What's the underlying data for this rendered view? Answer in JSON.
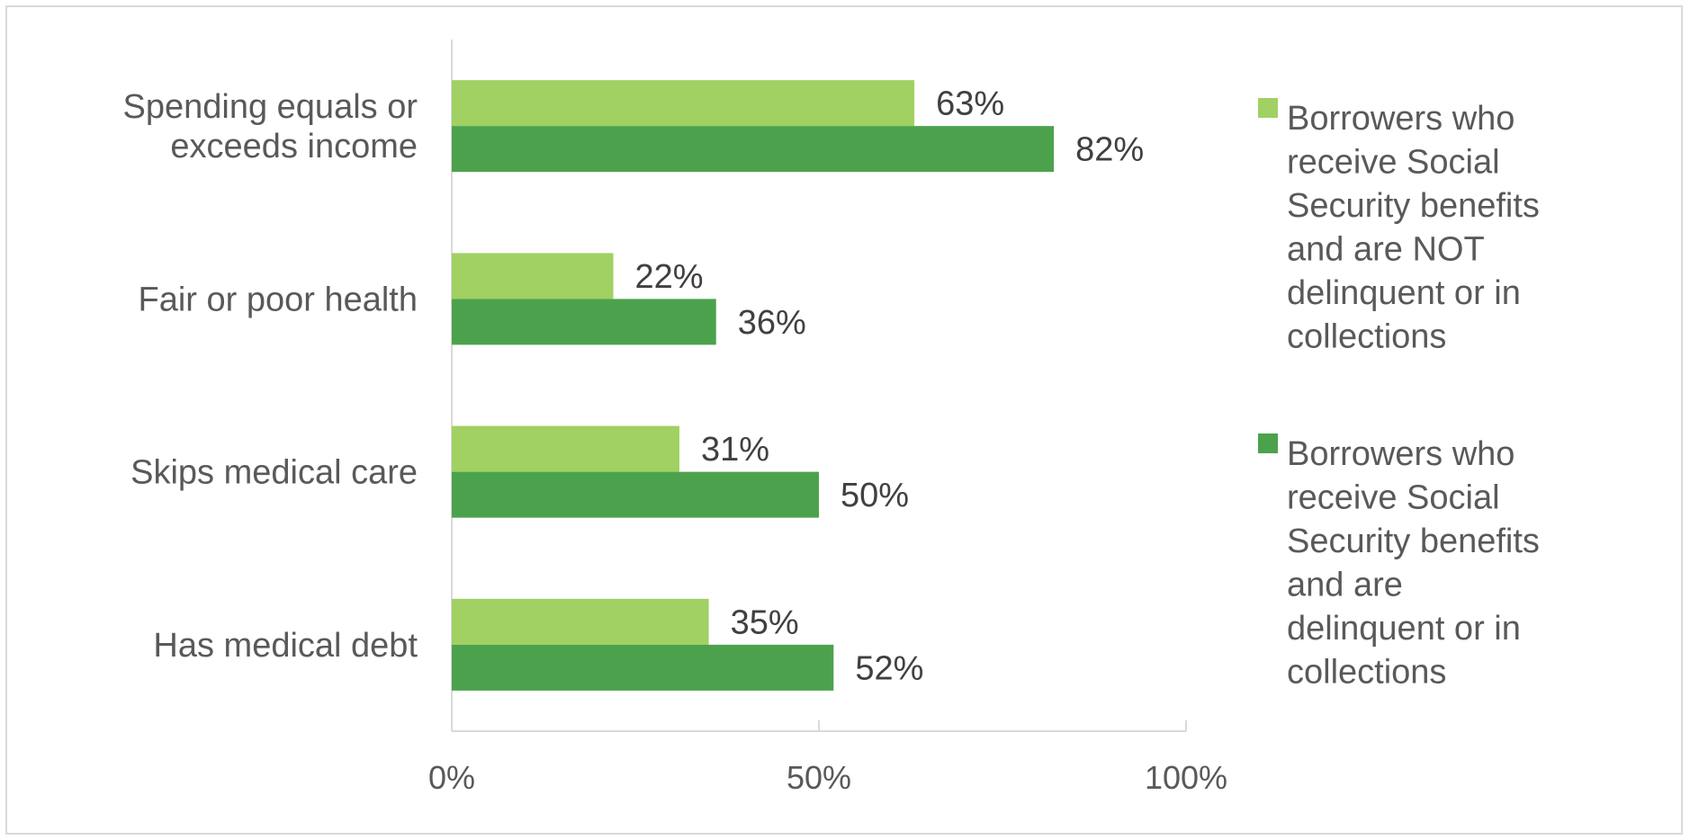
{
  "chart_data": {
    "type": "bar",
    "orientation": "horizontal",
    "categories": [
      "Spending equals or exceeds income",
      "Fair or poor health",
      "Skips medical care",
      "Has medical debt"
    ],
    "category_label_lines": [
      [
        "Spending equals or",
        "exceeds income"
      ],
      [
        "Fair or poor health"
      ],
      [
        "Skips medical care"
      ],
      [
        "Has medical debt"
      ]
    ],
    "series": [
      {
        "name": "Borrowers who receive Social Security benefits and are NOT delinquent or in collections",
        "legend_lines": [
          "Borrowers who",
          "receive Social",
          "Security benefits",
          "and are NOT",
          "delinquent or in",
          "collections"
        ],
        "values": [
          63,
          22,
          31,
          35
        ],
        "labels": [
          "63%",
          "22%",
          "31%",
          "35%"
        ],
        "color": "#a1d063"
      },
      {
        "name": "Borrowers who receive Social Security benefits and are delinquent or in collections",
        "legend_lines": [
          "Borrowers who",
          "receive Social",
          "Security benefits",
          "and are",
          "delinquent or in",
          "collections"
        ],
        "values": [
          82,
          36,
          50,
          52
        ],
        "labels": [
          "82%",
          "36%",
          "50%",
          "52%"
        ],
        "color": "#4ca24c"
      }
    ],
    "xlim": [
      0,
      100
    ],
    "x_ticks": [
      0,
      50,
      100
    ],
    "x_tick_labels": [
      "0%",
      "50%",
      "100%"
    ],
    "grid": false,
    "legend_position": "right",
    "title": "",
    "xlabel": "",
    "ylabel": ""
  }
}
